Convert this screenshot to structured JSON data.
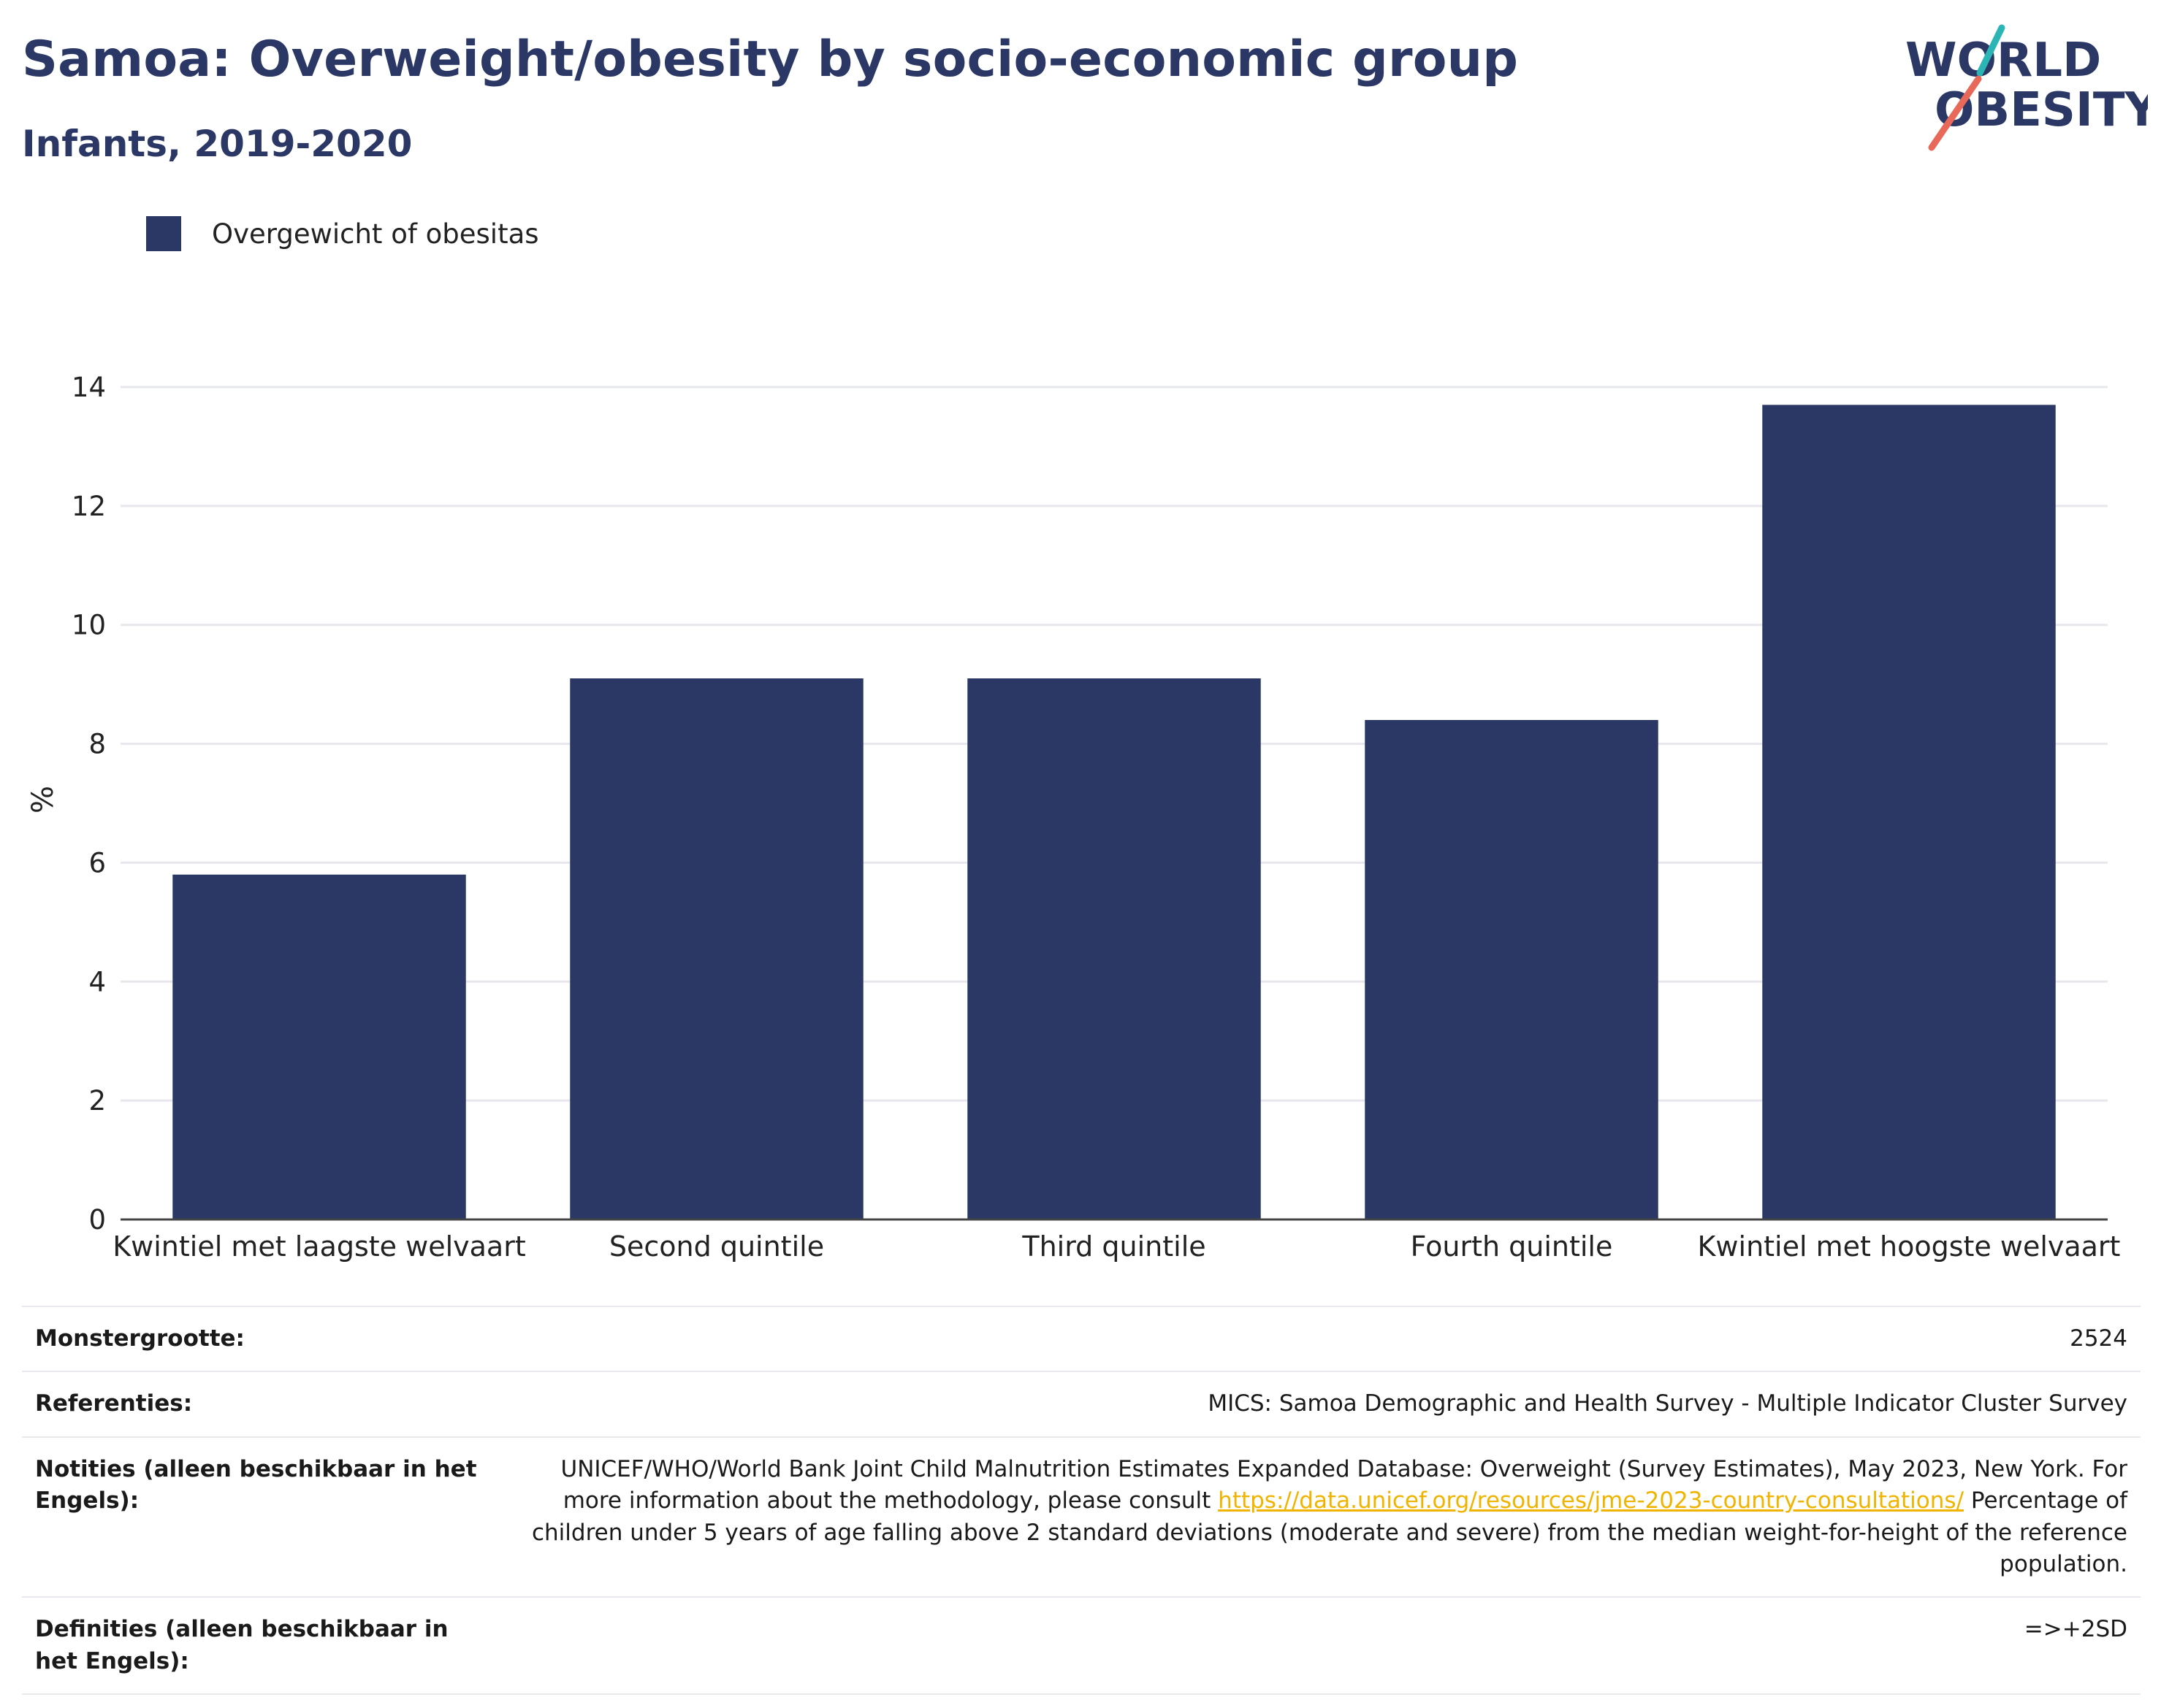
{
  "title": "Samoa: Overweight/obesity by socio-economic group",
  "subtitle": "Infants, 2019-2020",
  "logo": {
    "line1": "WORLD",
    "line2": "OBESITY",
    "colors": {
      "text": "#2b3764",
      "slash_red": "#e8685a",
      "slash_teal": "#2bb5b5"
    }
  },
  "legend": {
    "label": "Overgewicht of obesitas",
    "color": "#2b3764"
  },
  "chart_data": {
    "type": "bar",
    "categories": [
      "Kwintiel met laagste welvaart",
      "Second quintile",
      "Third quintile",
      "Fourth quintile",
      "Kwintiel met hoogste welvaart"
    ],
    "series": [
      {
        "name": "Overgewicht of obesitas",
        "values": [
          5.8,
          9.1,
          9.1,
          8.4,
          13.7
        ],
        "color": "#2b3764"
      }
    ],
    "ylabel": "%",
    "ylim": [
      0,
      14
    ],
    "yticks": [
      0,
      2,
      4,
      6,
      8,
      10,
      12,
      14
    ],
    "grid": true,
    "legend_position": "top-left"
  },
  "info": {
    "rows": [
      {
        "label": "Monstergrootte:",
        "value": "2524"
      },
      {
        "label": "Referenties:",
        "value": "MICS: Samoa Demographic and Health Survey - Multiple Indicator Cluster Survey"
      },
      {
        "label": "Notities (alleen beschikbaar in het Engels):",
        "value_before": "UNICEF/WHO/World Bank Joint Child Malnutrition Estimates Expanded Database: Overweight (Survey Estimates), May 2023, New York. For more information about the methodology, please consult ",
        "link": "https://data.unicef.org/resources/jme-2023-country-consultations/",
        "value_after": " Percentage of children under 5 years of age falling above 2 standard deviations (moderate and severe) from the median weight-for-height of the reference population."
      },
      {
        "label": "Definities (alleen beschikbaar in het Engels):",
        "value": "=>+2SD"
      }
    ]
  }
}
